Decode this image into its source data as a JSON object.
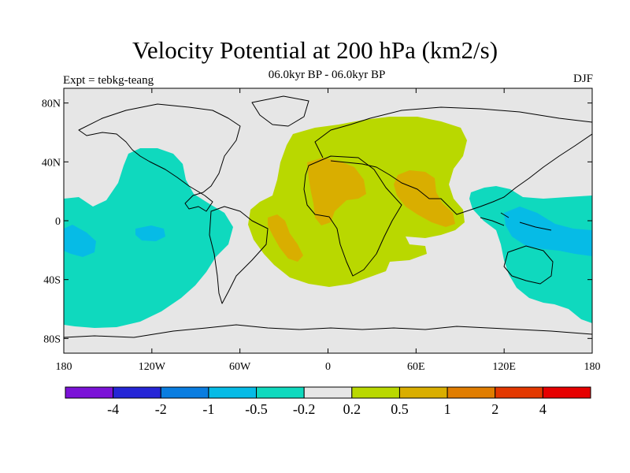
{
  "header": {
    "title": "Velocity Potential at 200 hPa (km2/s)",
    "subtitle": "06.0kyr BP - 06.0kyr BP",
    "left_label": "Expt = tebkg-teang",
    "right_label": "DJF"
  },
  "map": {
    "projection": "cylindrical-equidistant",
    "lon_range": [
      -180,
      180
    ],
    "lat_range": [
      -90,
      90
    ],
    "background_color": "#e6e6e6",
    "coastline_color": "#000000",
    "x_tick_labels": [
      "180",
      "120W",
      "60W",
      "0",
      "60E",
      "120E",
      "180"
    ],
    "y_tick_labels": [
      "80N",
      "40N",
      "0",
      "40S",
      "80S"
    ]
  },
  "colorbar": {
    "boundary_labels": [
      "-4",
      "-2",
      "-1",
      "-0.5",
      "-0.2",
      "0.2",
      "0.5",
      "1",
      "2",
      "4"
    ],
    "colors": [
      "#7b12d7",
      "#2626d6",
      "#0a7de0",
      "#06bbe6",
      "#0fd9be",
      "#e6e6e6",
      "#b9d800",
      "#d9ae00",
      "#e07d00",
      "#e33800",
      "#e60000"
    ]
  }
}
